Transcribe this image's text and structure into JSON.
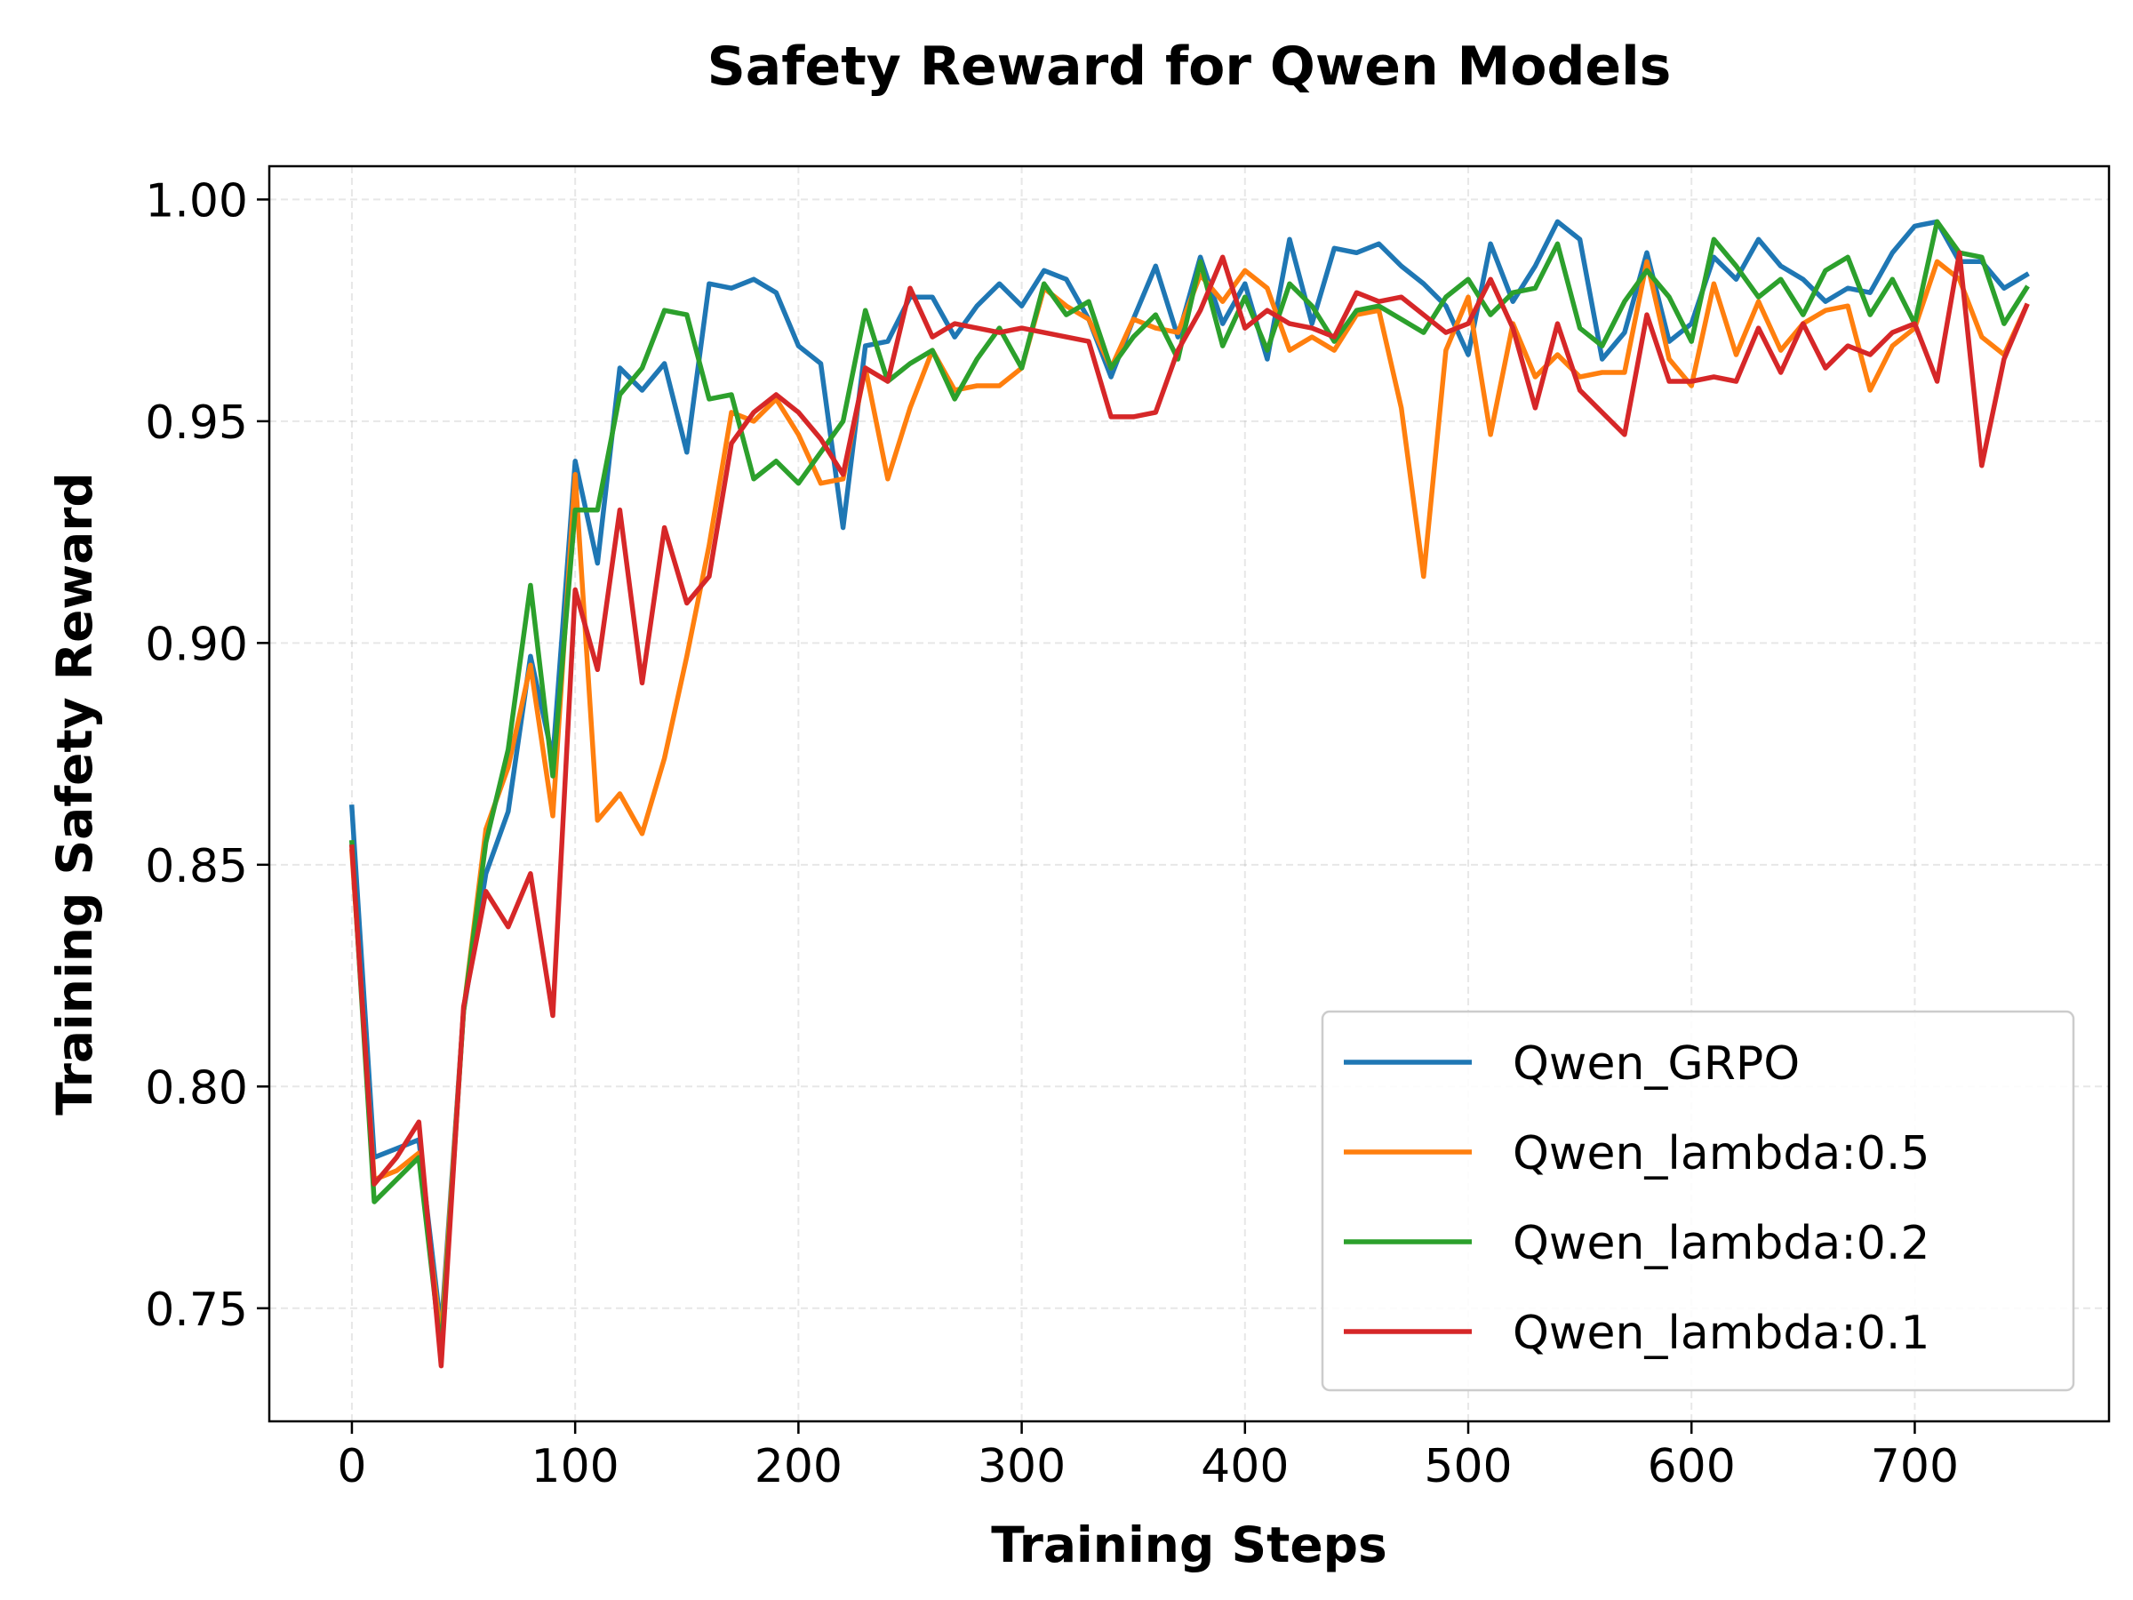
{
  "chart_data": {
    "type": "line",
    "title": "Safety Reward for Qwen Models",
    "xlabel": "Training Steps",
    "ylabel": "Training Safety Reward",
    "xlim": [
      -37,
      787
    ],
    "ylim": [
      0.7245,
      1.0075
    ],
    "xticks": [
      0,
      100,
      200,
      300,
      400,
      500,
      600,
      700
    ],
    "yticks": [
      0.75,
      0.8,
      0.85,
      0.9,
      0.95,
      1.0
    ],
    "xtick_labels": [
      "0",
      "100",
      "200",
      "300",
      "400",
      "500",
      "600",
      "700"
    ],
    "ytick_labels": [
      "0.75",
      "0.80",
      "0.85",
      "0.90",
      "0.95",
      "1.00"
    ],
    "grid": true,
    "legend_position": "lower-right",
    "x": [
      0,
      10,
      20,
      30,
      40,
      50,
      60,
      70,
      80,
      90,
      100,
      110,
      120,
      130,
      140,
      150,
      160,
      170,
      180,
      190,
      200,
      210,
      220,
      230,
      240,
      250,
      260,
      270,
      280,
      290,
      300,
      310,
      320,
      330,
      340,
      350,
      360,
      370,
      380,
      390,
      400,
      410,
      420,
      430,
      440,
      450,
      460,
      470,
      480,
      490,
      500,
      510,
      520,
      530,
      540,
      550,
      560,
      570,
      580,
      590,
      600,
      610,
      620,
      630,
      640,
      650,
      660,
      670,
      680,
      690,
      700,
      710,
      720,
      730,
      740,
      750
    ],
    "series": [
      {
        "name": "Qwen_GRPO",
        "color": "#1f77b4",
        "values": [
          0.863,
          0.784,
          0.786,
          0.788,
          0.745,
          0.817,
          0.848,
          0.862,
          0.897,
          0.874,
          0.941,
          0.918,
          0.962,
          0.957,
          0.963,
          0.943,
          0.981,
          0.98,
          0.982,
          0.979,
          0.967,
          0.963,
          0.926,
          0.967,
          0.968,
          0.978,
          0.978,
          0.969,
          0.976,
          0.981,
          0.976,
          0.984,
          0.982,
          0.973,
          0.96,
          0.973,
          0.985,
          0.969,
          0.987,
          0.972,
          0.981,
          0.964,
          0.991,
          0.972,
          0.989,
          0.988,
          0.99,
          0.985,
          0.981,
          0.976,
          0.965,
          0.99,
          0.977,
          0.985,
          0.995,
          0.991,
          0.964,
          0.97,
          0.988,
          0.968,
          0.972,
          0.987,
          0.982,
          0.991,
          0.985,
          0.982,
          0.977,
          0.98,
          0.979,
          0.988,
          0.994,
          0.995,
          0.986,
          0.986,
          0.98,
          0.983
        ]
      },
      {
        "name": "Qwen_lambda:0.5",
        "color": "#ff7f0e",
        "values": [
          0.853,
          0.779,
          0.781,
          0.785,
          0.743,
          0.817,
          0.858,
          0.872,
          0.895,
          0.861,
          0.938,
          0.86,
          0.866,
          0.857,
          0.874,
          0.897,
          0.922,
          0.952,
          0.95,
          0.955,
          0.947,
          0.936,
          0.937,
          0.962,
          0.937,
          0.953,
          0.966,
          0.957,
          0.958,
          0.958,
          0.962,
          0.98,
          0.976,
          0.973,
          0.962,
          0.973,
          0.971,
          0.97,
          0.983,
          0.977,
          0.984,
          0.98,
          0.966,
          0.969,
          0.966,
          0.974,
          0.975,
          0.953,
          0.915,
          0.966,
          0.978,
          0.947,
          0.972,
          0.96,
          0.965,
          0.96,
          0.961,
          0.961,
          0.986,
          0.964,
          0.958,
          0.981,
          0.965,
          0.977,
          0.966,
          0.972,
          0.975,
          0.976,
          0.957,
          0.967,
          0.971,
          0.986,
          0.982,
          0.969,
          0.965,
          0.976
        ]
      },
      {
        "name": "Qwen_lambda:0.2",
        "color": "#2ca02c",
        "values": [
          0.855,
          0.774,
          0.779,
          0.784,
          0.74,
          0.817,
          0.855,
          0.876,
          0.913,
          0.87,
          0.93,
          0.93,
          0.956,
          0.962,
          0.975,
          0.974,
          0.955,
          0.956,
          0.937,
          0.941,
          0.936,
          0.943,
          0.95,
          0.975,
          0.959,
          0.963,
          0.966,
          0.955,
          0.964,
          0.971,
          0.962,
          0.981,
          0.974,
          0.977,
          0.962,
          0.969,
          0.974,
          0.964,
          0.986,
          0.967,
          0.978,
          0.966,
          0.981,
          0.976,
          0.968,
          0.975,
          0.976,
          0.973,
          0.97,
          0.978,
          0.982,
          0.974,
          0.979,
          0.98,
          0.99,
          0.971,
          0.967,
          0.977,
          0.984,
          0.978,
          0.968,
          0.991,
          0.985,
          0.978,
          0.982,
          0.974,
          0.984,
          0.987,
          0.974,
          0.982,
          0.972,
          0.995,
          0.988,
          0.987,
          0.972,
          0.98
        ]
      },
      {
        "name": "Qwen_lambda:0.1",
        "color": "#d62728",
        "values": [
          0.854,
          0.778,
          0.784,
          0.792,
          0.737,
          0.818,
          0.844,
          0.836,
          0.848,
          0.816,
          0.912,
          0.894,
          0.93,
          0.891,
          0.926,
          0.909,
          0.915,
          0.945,
          0.952,
          0.956,
          0.952,
          0.946,
          0.938,
          0.962,
          0.959,
          0.98,
          0.969,
          0.972,
          0.971,
          0.97,
          0.971,
          0.97,
          0.969,
          0.968,
          0.951,
          0.951,
          0.952,
          0.966,
          0.975,
          0.987,
          0.971,
          0.975,
          0.972,
          0.971,
          0.969,
          0.979,
          0.977,
          0.978,
          0.974,
          0.97,
          0.972,
          0.982,
          0.971,
          0.953,
          0.972,
          0.957,
          0.952,
          0.947,
          0.974,
          0.959,
          0.959,
          0.96,
          0.959,
          0.971,
          0.961,
          0.972,
          0.962,
          0.967,
          0.965,
          0.97,
          0.972,
          0.959,
          0.988,
          0.94,
          0.964,
          0.976
        ]
      }
    ]
  }
}
